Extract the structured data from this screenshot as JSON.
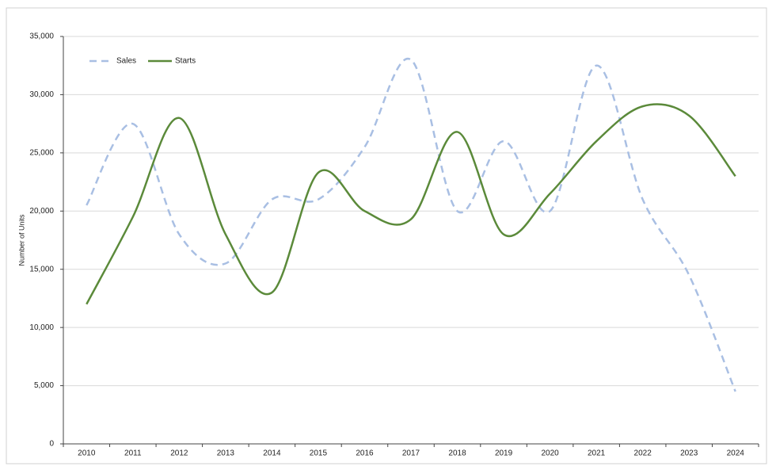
{
  "chart_data": {
    "type": "line",
    "y_label": "Number of Units",
    "categories": [
      "2010",
      "2011",
      "2012",
      "2013",
      "2014",
      "2015",
      "2016",
      "2017",
      "2018",
      "2019",
      "2020",
      "2021",
      "2022",
      "2023",
      "2024"
    ],
    "series": [
      {
        "name": "Sales",
        "color": "#a9bfe3",
        "dashed": true,
        "values": [
          20500,
          27500,
          18000,
          15500,
          21000,
          21000,
          25500,
          33000,
          20000,
          26000,
          20000,
          32500,
          21000,
          14500,
          4500
        ]
      },
      {
        "name": "Starts",
        "color": "#5b8a3a",
        "dashed": false,
        "values": [
          12000,
          19500,
          28000,
          18000,
          13000,
          23300,
          20000,
          19300,
          26800,
          18000,
          21500,
          26000,
          29000,
          28200,
          23000
        ]
      }
    ],
    "ylim": [
      0,
      35000
    ],
    "yticks": [
      0,
      {
        "value": 5000,
        "label": "5,000"
      },
      {
        "value": 10000,
        "label": "10,000"
      },
      {
        "value": 15000,
        "label": "15,000"
      },
      {
        "value": 20000,
        "label": "20,000"
      },
      {
        "value": 25000,
        "label": "25,000"
      },
      {
        "value": 30000,
        "label": "30,000"
      },
      {
        "value": 35000,
        "label": "35,000"
      }
    ],
    "grid": true,
    "legend": "top-left"
  }
}
